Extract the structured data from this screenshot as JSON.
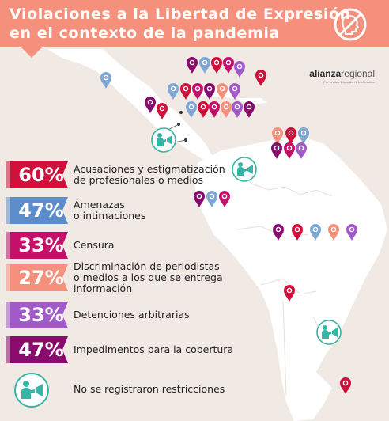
{
  "header": {
    "title_line1": "Violaciones a la Libertad de Expresión",
    "title_line2": "en el contexto de la pandemia",
    "bg_color": "#f4907b"
  },
  "brand": {
    "name_prefix": "alianza",
    "name_suffix": "regional",
    "tagline": "Por la Libre Expresión e Información"
  },
  "legend": [
    {
      "percent": "60%",
      "label_lines": [
        "Acusaciones y estigmatización",
        "de profesionales o medios"
      ],
      "color": "#d0103a"
    },
    {
      "percent": "47%",
      "label_lines": [
        "Amenazas",
        "o intimaciones"
      ],
      "color": "#5b8dc9"
    },
    {
      "percent": "33%",
      "label_lines": [
        "Censura"
      ],
      "color": "#c4106b"
    },
    {
      "percent": "27%",
      "label_lines": [
        "Discriminación de periodistas",
        "o medios a los que se entrega",
        "información"
      ],
      "color": "#f4907b"
    },
    {
      "percent": "33%",
      "label_lines": [
        "Detenciones arbitrarias"
      ],
      "color": "#a259c9"
    },
    {
      "percent": "47%",
      "label_lines": [
        "Impedimentos para la cobertura"
      ],
      "color": "#8a0b6e"
    }
  ],
  "no_restrictions": {
    "label": "No se registraron restricciones",
    "icon": "reporter-megaphone-icon",
    "color": "#36b4a6"
  },
  "pin_colors": {
    "red": "#d0103a",
    "blue": "#7fa7d6",
    "magenta": "#c4106b",
    "salmon": "#f4907b",
    "purple": "#a259c9",
    "plum": "#8a0b6e"
  }
}
